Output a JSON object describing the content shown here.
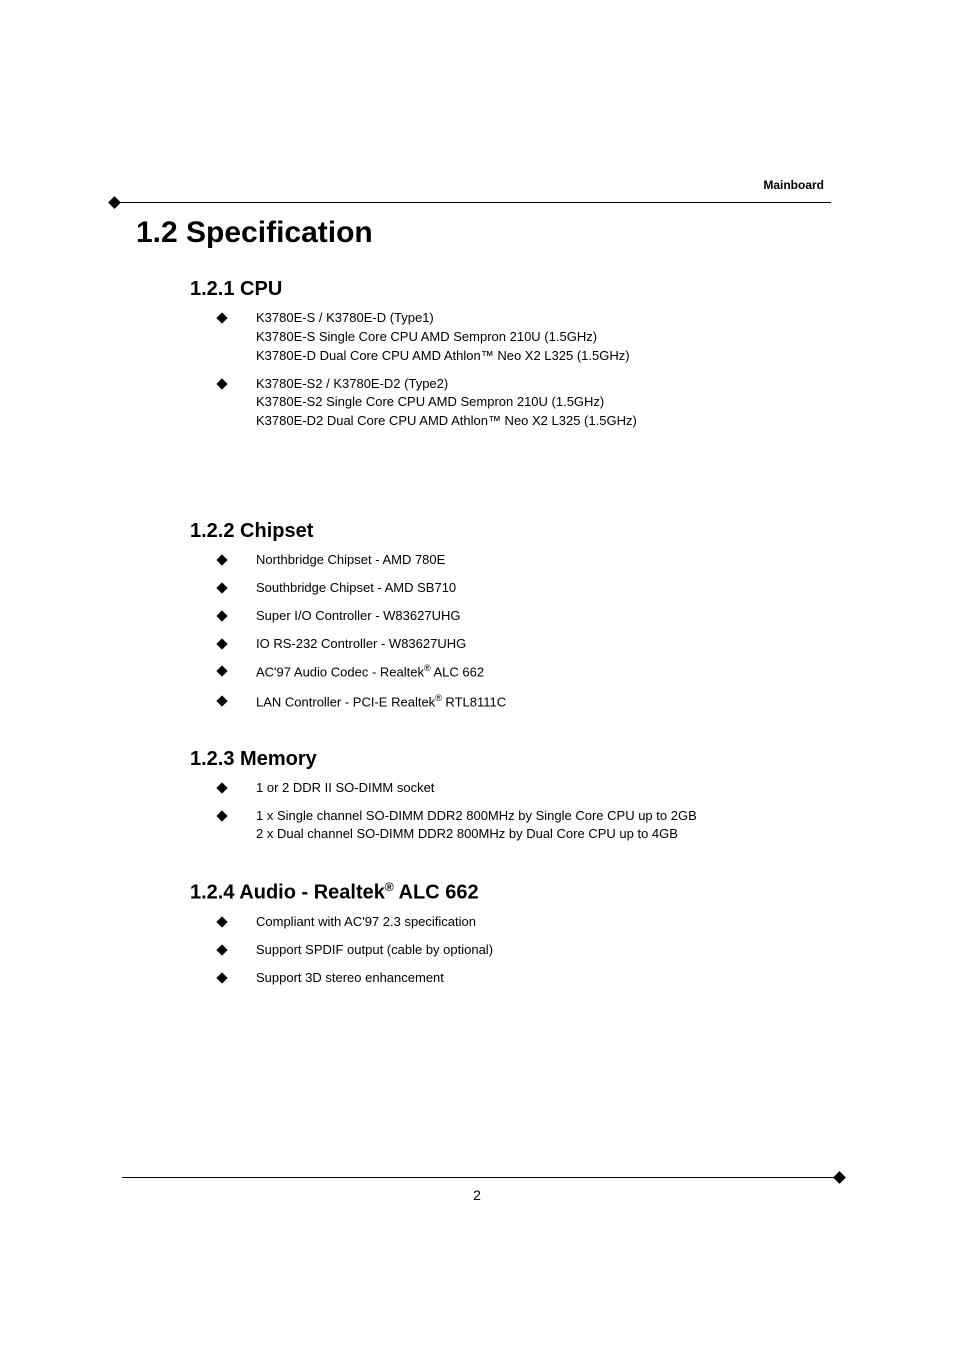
{
  "header": {
    "label": "Mainboard"
  },
  "title": "1.2 Specification",
  "sections": {
    "cpu": {
      "title": "1.2.1 CPU",
      "items": [
        {
          "line1": "K3780E-S / K3780E-D (Type1)",
          "line2": "K3780E-S Single Core CPU AMD Sempron 210U (1.5GHz)",
          "line3": "K3780E-D Dual Core CPU AMD Athlon™ Neo X2 L325 (1.5GHz)"
        },
        {
          "line1": "K3780E-S2 / K3780E-D2 (Type2)",
          "line2": "K3780E-S2 Single Core CPU AMD Sempron 210U (1.5GHz)",
          "line3": "K3780E-D2 Dual Core CPU AMD Athlon™ Neo X2 L325 (1.5GHz)"
        }
      ]
    },
    "chipset": {
      "title": "1.2.2 Chipset",
      "items": [
        "Northbridge Chipset - AMD 780E",
        "Southbridge Chipset - AMD SB710",
        "Super I/O Controller - W83627UHG",
        "IO RS-232 Controller - W83627UHG",
        "AC'97 Audio Codec - Realtek",
        "LAN Controller - PCI-E Realtek"
      ],
      "suffix4": " ALC 662",
      "suffix5": " RTL8111C",
      "reg": "®"
    },
    "memory": {
      "title": "1.2.3 Memory",
      "items": [
        "1 or 2 DDR II SO-DIMM socket"
      ],
      "item2line1": "1 x Single channel SO-DIMM DDR2 800MHz by Single Core CPU up to 2GB",
      "item2line2": "2 x Dual channel SO-DIMM DDR2 800MHz by Dual Core CPU up to 4GB"
    },
    "audio": {
      "title_prefix": "1.2.4 Audio - Realtek",
      "title_suffix": " ALC 662",
      "reg": "®",
      "items": [
        "Compliant with AC'97 2.3 specification",
        "Support SPDIF output (cable by optional)",
        "Support 3D stereo enhancement"
      ]
    }
  },
  "pageNumber": "2",
  "colors": {
    "text": "#000000",
    "background": "#ffffff",
    "rule": "#000000"
  },
  "fonts": {
    "title_size": 30,
    "section_size": 20,
    "body_size": 13,
    "header_size": 12
  }
}
